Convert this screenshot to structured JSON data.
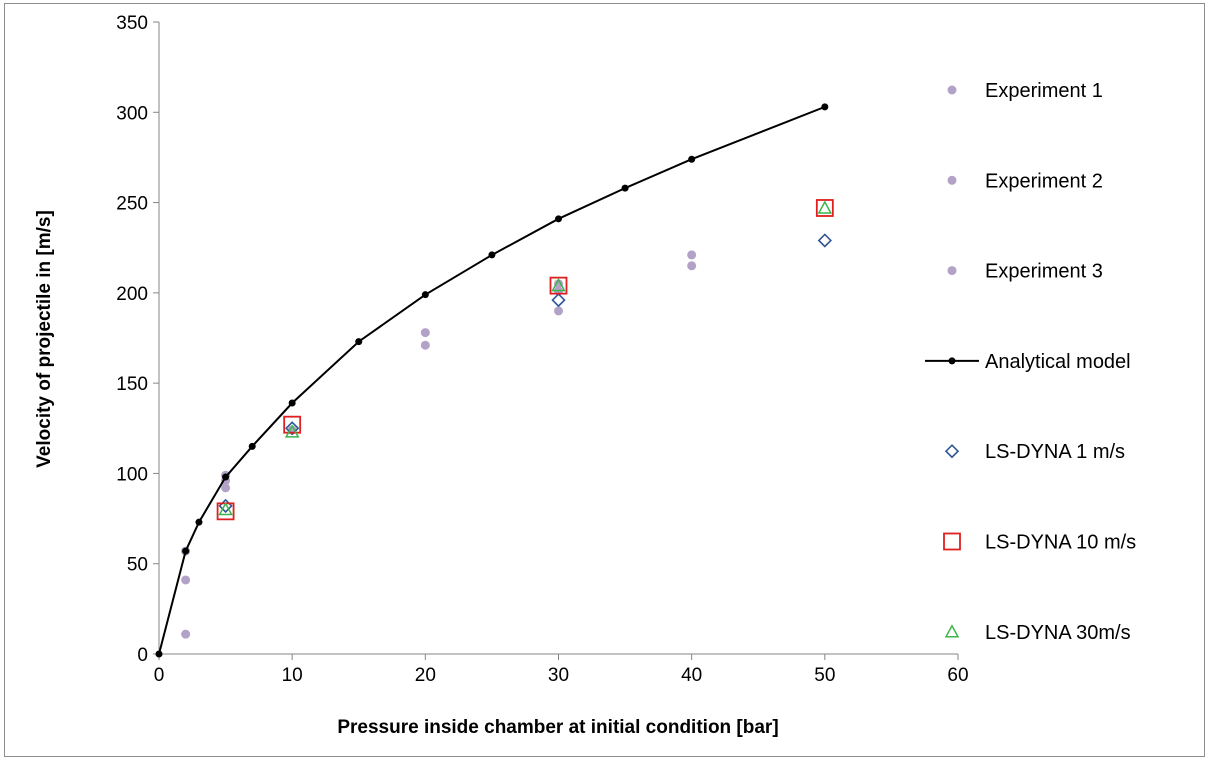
{
  "chart_data": {
    "type": "scatter",
    "title": "",
    "xlabel": "Pressure inside chamber at initial  condition [bar]",
    "ylabel": "Velocity of projectile in [m/s]",
    "xlim": [
      0,
      60
    ],
    "ylim": [
      0,
      350
    ],
    "xticks": [
      0,
      10,
      20,
      30,
      40,
      50,
      60
    ],
    "yticks": [
      0,
      50,
      100,
      150,
      200,
      250,
      300,
      350
    ],
    "grid": false,
    "legend_position": "right",
    "series": [
      {
        "name": "Experiment 1",
        "kind": "scatter",
        "marker": "circle-filled",
        "color": "#b3a2c7",
        "points": [
          [
            2,
            11
          ],
          [
            5,
            92
          ],
          [
            20,
            171
          ],
          [
            30,
            190
          ],
          [
            40,
            215
          ]
        ]
      },
      {
        "name": "Experiment 2",
        "kind": "scatter",
        "marker": "circle-filled",
        "color": "#b3a2c7",
        "points": [
          [
            2,
            41
          ],
          [
            5,
            96
          ],
          [
            20,
            178
          ],
          [
            30,
            201
          ],
          [
            40,
            221
          ]
        ]
      },
      {
        "name": "Experiment 3",
        "kind": "scatter",
        "marker": "circle-filled",
        "color": "#b3a2c7",
        "points": [
          [
            2,
            57
          ],
          [
            5,
            99
          ],
          [
            10,
            124
          ],
          [
            30,
            205
          ]
        ]
      },
      {
        "name": "Analytical model",
        "kind": "line",
        "marker": "dot",
        "color": "#000000",
        "points": [
          [
            0,
            0
          ],
          [
            2,
            57
          ],
          [
            3,
            73
          ],
          [
            5,
            98
          ],
          [
            7,
            115
          ],
          [
            10,
            139
          ],
          [
            15,
            173
          ],
          [
            20,
            199
          ],
          [
            25,
            221
          ],
          [
            30,
            241
          ],
          [
            35,
            258
          ],
          [
            40,
            274
          ],
          [
            50,
            303
          ]
        ]
      },
      {
        "name": "LS-DYNA 1 m/s",
        "kind": "scatter",
        "marker": "diamond-open",
        "color": "#2f5597",
        "points": [
          [
            5,
            82
          ],
          [
            10,
            125
          ],
          [
            30,
            196
          ],
          [
            50,
            229
          ]
        ]
      },
      {
        "name": "LS-DYNA 10 m/s",
        "kind": "scatter",
        "marker": "square-open",
        "color": "#e02020",
        "points": [
          [
            5,
            79
          ],
          [
            10,
            127
          ],
          [
            30,
            204
          ],
          [
            50,
            247
          ]
        ]
      },
      {
        "name": "LS-DYNA 30m/s",
        "kind": "scatter",
        "marker": "triangle-open",
        "color": "#3cb44b",
        "points": [
          [
            5,
            80
          ],
          [
            10,
            123
          ],
          [
            30,
            204
          ],
          [
            50,
            247
          ]
        ]
      }
    ]
  }
}
